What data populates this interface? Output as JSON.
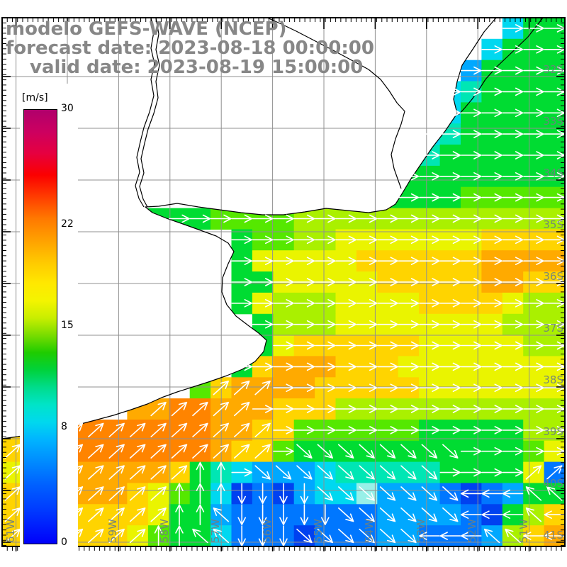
{
  "title": {
    "line1": "modelo GEFS-WAVE (NCEP)",
    "line2": "forecast date: 2023-08-18 00:00:00",
    "line3": "valid date: 2023-08-19 15:00:00",
    "color": "#878787"
  },
  "colorbar": {
    "unit": "[m/s]",
    "min": 0,
    "max": 30,
    "tick_values": [
      30,
      22,
      15,
      8,
      0
    ],
    "gradient_stops": [
      {
        "p": 0,
        "c": "#b0006c"
      },
      {
        "p": 5,
        "c": "#cc0060"
      },
      {
        "p": 10,
        "c": "#e60040"
      },
      {
        "p": 15,
        "c": "#fb0000"
      },
      {
        "p": 20,
        "c": "#ff3c00"
      },
      {
        "p": 25,
        "c": "#ff7800"
      },
      {
        "p": 30,
        "c": "#ffa000"
      },
      {
        "p": 35,
        "c": "#ffc800"
      },
      {
        "p": 40,
        "c": "#ffe800"
      },
      {
        "p": 44,
        "c": "#f4f400"
      },
      {
        "p": 48,
        "c": "#c8ee00"
      },
      {
        "p": 52,
        "c": "#78dc00"
      },
      {
        "p": 56,
        "c": "#1ecc00"
      },
      {
        "p": 60,
        "c": "#00d23c"
      },
      {
        "p": 64,
        "c": "#00dc8c"
      },
      {
        "p": 68,
        "c": "#00e4c8"
      },
      {
        "p": 72,
        "c": "#00d8ee"
      },
      {
        "p": 76,
        "c": "#00b4ff"
      },
      {
        "p": 81,
        "c": "#008cff"
      },
      {
        "p": 86,
        "c": "#0064ff"
      },
      {
        "p": 92,
        "c": "#003cff"
      },
      {
        "p": 100,
        "c": "#0000fa"
      }
    ]
  },
  "axes": {
    "lat_labels": [
      "32S",
      "33S",
      "34S",
      "35S",
      "36S",
      "37S",
      "38S",
      "39S",
      "40S",
      "41S"
    ],
    "lon_labels": [
      "61W",
      "60W",
      "59W",
      "58W",
      "57W",
      "56W",
      "55W",
      "54W",
      "53W",
      "52W",
      "51W"
    ],
    "label_color": "#6f8080",
    "grid_color": "#909090"
  },
  "field": {
    "arrow_color": "#ffffff",
    "palette": {
      "B": "#0041f0",
      "b": "#0077ff",
      "c": "#00a8ff",
      "C": "#00d8f0",
      "A": "#98f0e8",
      "t": "#00e6b4",
      "T": "#00e98c",
      "g": "#00dc32",
      "G": "#55e800",
      "y": "#aaf000",
      "Y": "#eaf400",
      "o": "#ffd400",
      "O": "#ffaa00",
      "R": "#ff8400"
    },
    "colors": [
      "........................Cgg",
      ".......................Cggg",
      "......................cgggg",
      ".....................Ctgggg",
      ".....................Cggggg",
      "....................Ctggggg",
      "....................tgggggg",
      "...................gggggggg",
      "..................ggggGGGGG",
      ".......gggGGGGyyyyyyyyyyyyy",
      "...........gGGyyYYYYYYYoooo",
      "...........gYYYYYooooooOOOO",
      "...........ggYYYYYoooooOOoo",
      "...........gYyyyYYYYooooYyy",
      "............gyyyYYYYYYYYyyy",
      "............gYooooooYYYYYyy",
      "...........goOOOoooYYYYYYYY",
      ".........GoOOOOoooooYYYYYYY",
      "......OORROOOoooyyyyyyyyyyy",
      "oRRRRRRRRROOooGGGGGGgggggyy",
      "oRRRRRRRRROooGgggggggggggGY",
      "YOOOOOOOogtCcccCtttttggggYb",
      "oOOOOOoYGgCBbBcCCAcccbBbcgg",
      "oooooooYggcbbbbbbbccccbBgyo",
      "ooooooYGggCbbbBbbbccbbbcyoO"
    ],
    "arrows": [
      "........................eee",
      ".......................eeee",
      "......................eeeee",
      ".....................eeeeee",
      ".....................eeeeee",
      "....................eeeeeee",
      "....................eeeeeee",
      "...................eeeeeeee",
      "..................eeeeeeeee",
      "........eeeeeeeeeeeeeeeeeee",
      "...........eeeeeeeeeeeeeeee",
      "...........eeeeeeeeeeeeeeee",
      "...........eeeeeeeeeeeeeeee",
      "...........eeeeeeeeeeeeeeee",
      "............eeeeeeeeeeeeeee",
      ".............eeeeeeeeeeeeee",
      "...........eeeeeeeeeeeeeeee",
      "..........aaaeeeeeeeeeeeeee",
      ".......aaaaaeeeeeeeeeeeeeee",
      ".aaaaaaaaaaaaeeeeeeeeeeeeee",
      "aaaaaaaaaaaaaesssssssseeeee",
      "aaaaaaaaannesssssssssexeeaa",
      "aaaaaaaannnddddssssssslllww",
      "aaaaaaaannwdddddsssssslllwll",
      "aaaaaaannwwdddsssssslllwwll"
    ]
  },
  "geo": {
    "land": [
      700,
      25,
      683,
      45,
      668,
      68,
      652,
      92,
      645,
      115,
      640,
      140,
      645,
      160,
      628,
      185,
      610,
      208,
      595,
      230,
      580,
      252,
      568,
      272,
      558,
      288,
      545,
      296,
      520,
      300,
      490,
      297,
      460,
      294,
      430,
      299,
      400,
      303,
      370,
      303,
      340,
      300,
      310,
      296,
      280,
      292,
      250,
      287,
      224,
      291,
      205,
      292,
      215,
      300,
      235,
      308,
      258,
      316,
      283,
      325,
      305,
      333,
      322,
      343,
      330,
      355,
      322,
      372,
      314,
      392,
      313,
      412,
      320,
      430,
      333,
      446,
      350,
      459,
      365,
      470,
      376,
      480,
      372,
      496,
      360,
      510,
      342,
      521,
      320,
      530,
      297,
      538,
      272,
      546,
      250,
      553,
      228,
      561,
      208,
      570,
      185,
      578,
      160,
      586,
      130,
      594,
      95,
      603,
      60,
      610,
      25,
      616,
      3,
      619
    ],
    "outer_coast": [
      766,
      25,
      745,
      52,
      718,
      78,
      700,
      95,
      685,
      112,
      676,
      126,
      666,
      140,
      656,
      152,
      647,
      162
    ],
    "river_a": [
      213,
      25,
      217,
      45,
      213,
      68,
      218,
      90,
      213,
      112,
      217,
      135,
      211,
      158,
      203,
      180,
      198,
      200,
      193,
      222,
      197,
      243,
      191,
      262,
      196,
      280,
      203,
      292
    ],
    "river_b": [
      220,
      25,
      224,
      48,
      220,
      70,
      225,
      92,
      220,
      115,
      223,
      138,
      217,
      160,
      209,
      182,
      204,
      202,
      199,
      224,
      203,
      244,
      197,
      263,
      202,
      281,
      208,
      292
    ],
    "border": [
      377,
      25,
      395,
      33,
      418,
      44,
      445,
      58,
      472,
      72,
      498,
      86,
      520,
      98,
      537,
      112,
      549,
      128,
      560,
      145,
      571,
      157,
      566,
      175,
      558,
      196,
      552,
      218,
      556,
      238,
      562,
      255,
      566,
      266
    ]
  }
}
